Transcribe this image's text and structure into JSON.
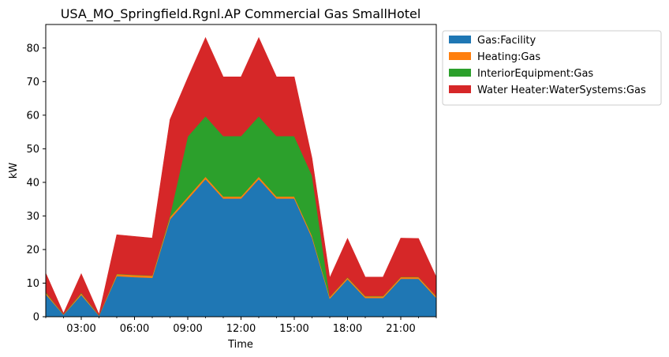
{
  "chart_data": {
    "type": "area",
    "stacked": true,
    "title": "USA_MO_Springfield.Rgnl.AP Commercial Gas SmallHotel",
    "xlabel": "Time",
    "ylabel": "kW",
    "x": [
      1,
      2,
      3,
      4,
      5,
      6,
      7,
      8,
      9,
      10,
      11,
      12,
      13,
      14,
      15,
      16,
      17,
      18,
      19,
      20,
      21,
      22,
      23
    ],
    "xlim": [
      1,
      23
    ],
    "ylim": [
      0,
      87
    ],
    "x_ticks": [
      {
        "value": 3,
        "label": "03:00"
      },
      {
        "value": 6,
        "label": "06:00"
      },
      {
        "value": 9,
        "label": "09:00"
      },
      {
        "value": 12,
        "label": "12:00"
      },
      {
        "value": 15,
        "label": "15:00"
      },
      {
        "value": 18,
        "label": "18:00"
      },
      {
        "value": 21,
        "label": "21:00"
      }
    ],
    "y_ticks": [
      {
        "value": 0,
        "label": "0"
      },
      {
        "value": 10,
        "label": "10"
      },
      {
        "value": 20,
        "label": "20"
      },
      {
        "value": 30,
        "label": "30"
      },
      {
        "value": 40,
        "label": "40"
      },
      {
        "value": 50,
        "label": "50"
      },
      {
        "value": 60,
        "label": "60"
      },
      {
        "value": 70,
        "label": "70"
      },
      {
        "value": 80,
        "label": "80"
      }
    ],
    "legend_position": "outside-top-right",
    "grid": false,
    "series": [
      {
        "name": "Gas:Facility",
        "color": "#1f77b4",
        "values": [
          6.7,
          0.6,
          6.5,
          0.3,
          12.1,
          11.8,
          11.6,
          29.0,
          35.0,
          41.0,
          35.2,
          35.2,
          41.0,
          35.2,
          35.2,
          23.5,
          5.4,
          11.2,
          5.6,
          5.6,
          11.3,
          11.3,
          5.6
        ]
      },
      {
        "name": "Heating:Gas",
        "color": "#ff7f0e",
        "values": [
          0.5,
          0.1,
          0.5,
          0.1,
          0.6,
          0.6,
          0.6,
          0.7,
          0.7,
          0.7,
          0.6,
          0.6,
          0.7,
          0.6,
          0.6,
          0.6,
          0.5,
          0.5,
          0.5,
          0.5,
          0.5,
          0.5,
          0.5
        ]
      },
      {
        "name": "InteriorEquipment:Gas",
        "color": "#2ca02c",
        "values": [
          0.2,
          0.1,
          0.2,
          0.1,
          0.1,
          0.1,
          0.1,
          0.5,
          18.0,
          18.0,
          18.0,
          18.0,
          18.0,
          18.0,
          18.0,
          18.0,
          0.1,
          0.1,
          0.1,
          0.1,
          0.1,
          0.1,
          0.1
        ]
      },
      {
        "name": "Water Heater:WaterSystems:Gas",
        "color": "#d62728",
        "values": [
          5.6,
          0.2,
          5.6,
          0.2,
          11.6,
          11.4,
          11.1,
          28.5,
          17.4,
          23.4,
          17.6,
          17.6,
          23.4,
          17.6,
          17.6,
          5.1,
          5.6,
          11.5,
          5.6,
          5.6,
          11.5,
          11.4,
          5.6
        ]
      }
    ]
  }
}
